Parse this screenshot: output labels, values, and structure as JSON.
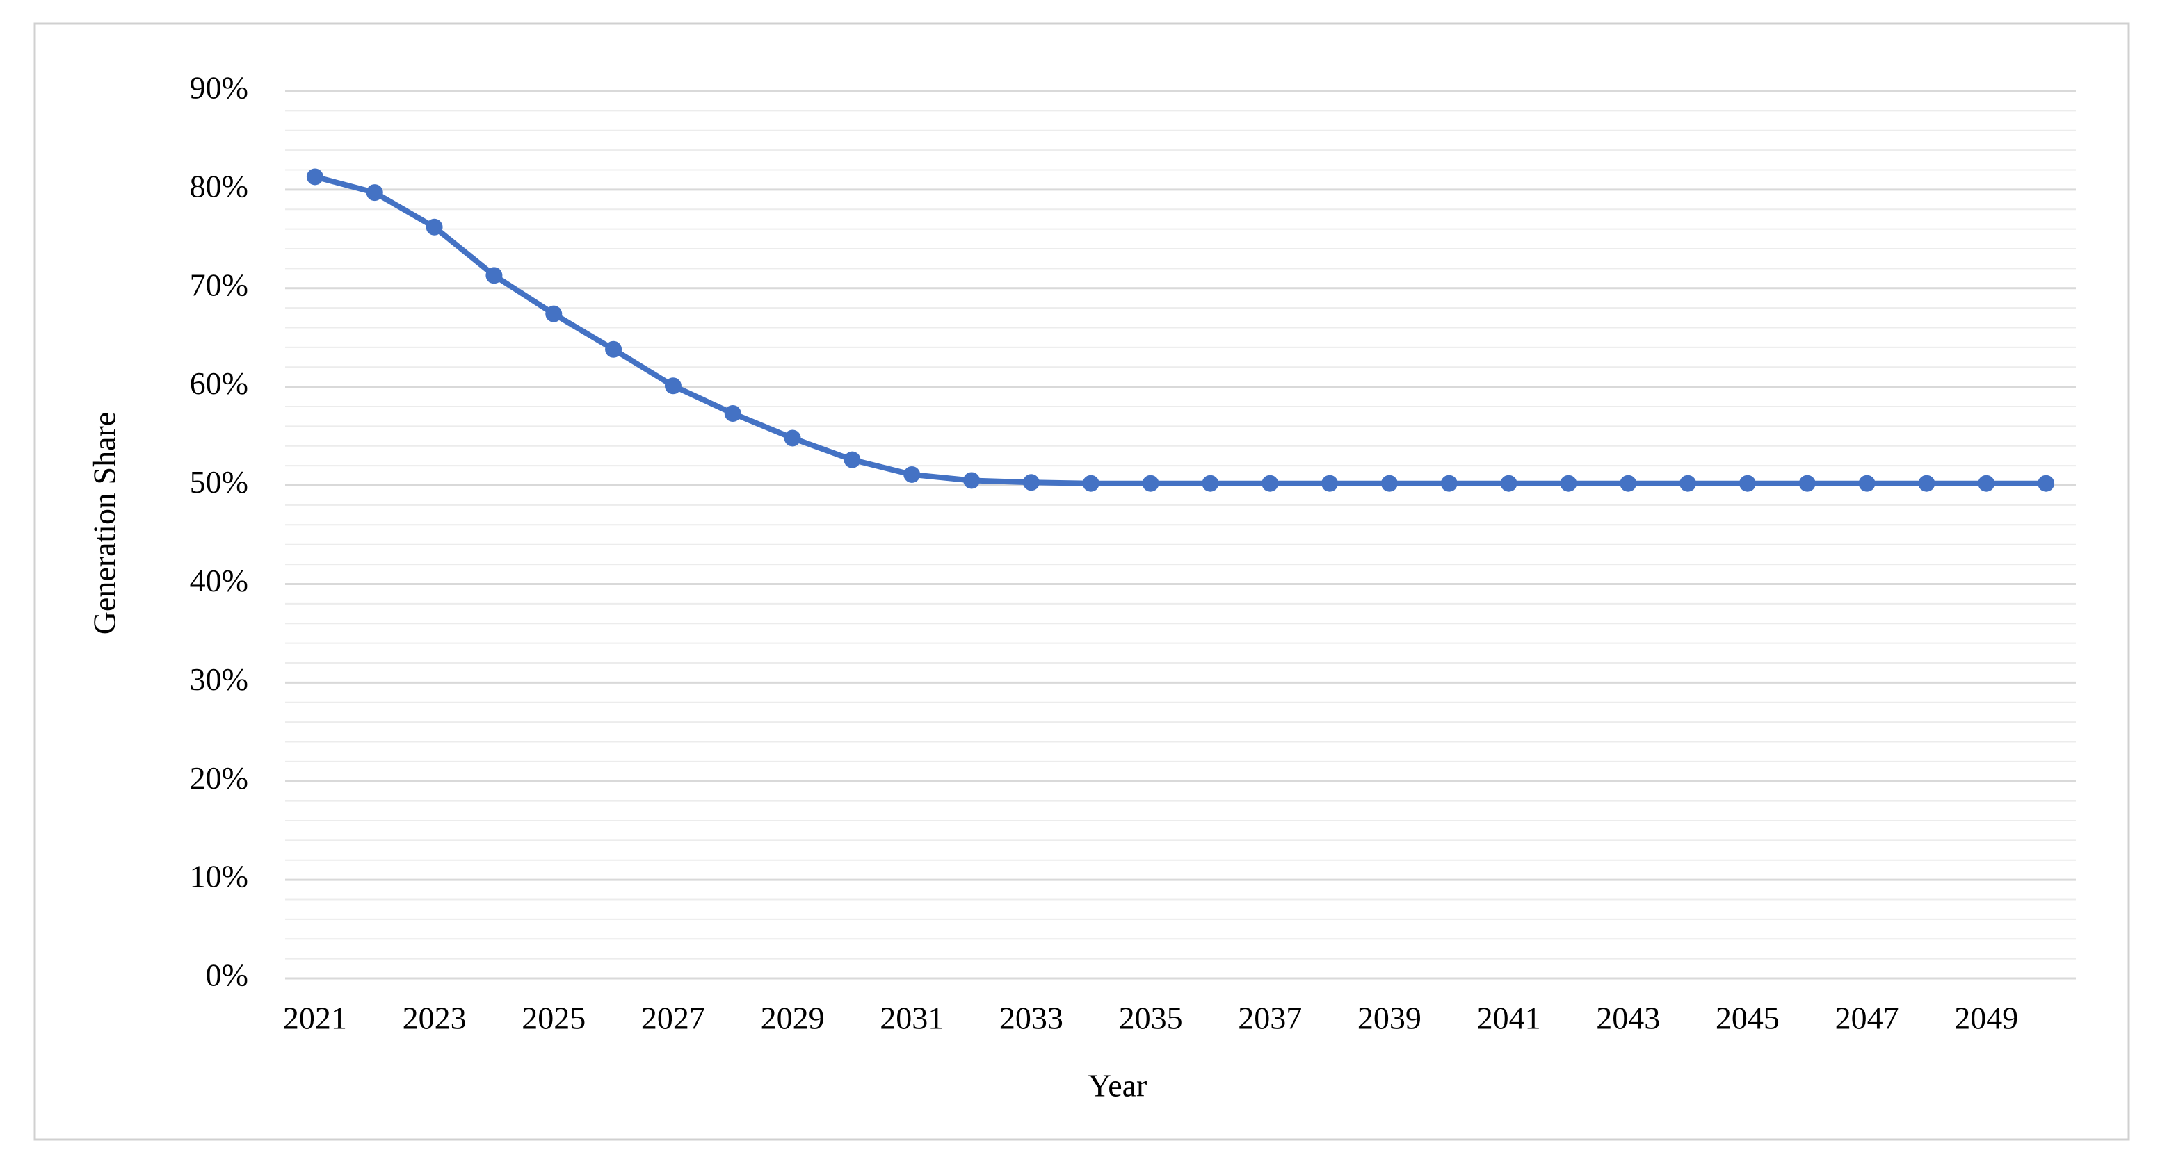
{
  "chart_data": {
    "type": "line",
    "x_label": "Year",
    "y_label": "Generation Share",
    "x": [
      2021,
      2022,
      2023,
      2024,
      2025,
      2026,
      2027,
      2028,
      2029,
      2030,
      2031,
      2032,
      2033,
      2034,
      2035,
      2036,
      2037,
      2038,
      2039,
      2040,
      2041,
      2042,
      2043,
      2044,
      2045,
      2046,
      2047,
      2048,
      2049,
      2050
    ],
    "values": [
      81.3,
      79.7,
      76.2,
      71.3,
      67.4,
      63.8,
      60.1,
      57.3,
      54.8,
      52.6,
      51.1,
      50.5,
      50.3,
      50.2,
      50.2,
      50.2,
      50.2,
      50.2,
      50.2,
      50.2,
      50.2,
      50.2,
      50.2,
      50.2,
      50.2,
      50.2,
      50.2,
      50.2,
      50.2,
      50.2
    ],
    "color": "#4472c4",
    "xlim": [
      2020.5,
      2050.5
    ],
    "xticks": [
      2021,
      2023,
      2025,
      2027,
      2029,
      2031,
      2033,
      2035,
      2037,
      2039,
      2041,
      2043,
      2045,
      2047,
      2049
    ],
    "ylim": [
      0,
      90
    ],
    "yticks": [
      {
        "value": 0,
        "label": "0%"
      },
      {
        "value": 10,
        "label": "10%"
      },
      {
        "value": 20,
        "label": "20%"
      },
      {
        "value": 30,
        "label": "30%"
      },
      {
        "value": 40,
        "label": "40%"
      },
      {
        "value": 50,
        "label": "50%"
      },
      {
        "value": 60,
        "label": "60%"
      },
      {
        "value": 70,
        "label": "70%"
      },
      {
        "value": 80,
        "label": "80%"
      },
      {
        "value": 90,
        "label": "90%"
      }
    ],
    "yminor_ticks": [
      2,
      4,
      6,
      8,
      12,
      14,
      16,
      18,
      22,
      24,
      26,
      28,
      32,
      34,
      36,
      38,
      42,
      44,
      46,
      48,
      52,
      54,
      56,
      58,
      62,
      64,
      66,
      68,
      72,
      74,
      76,
      78,
      82,
      84,
      86,
      88
    ],
    "grid": true,
    "markers": true
  }
}
